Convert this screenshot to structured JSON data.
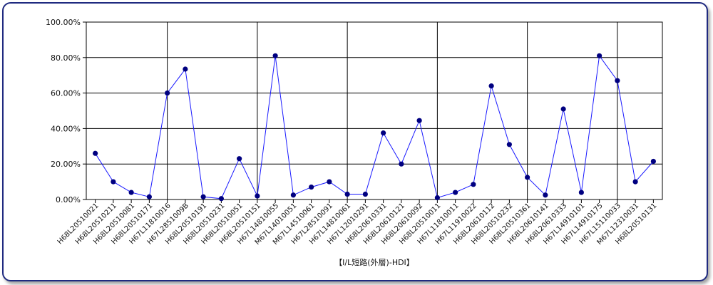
{
  "chart_data": {
    "type": "line",
    "title": "",
    "xlabel": "【I/L短路(外層)-HDI】",
    "ylabel": "",
    "ylim": [
      0,
      100
    ],
    "y_tick_labels": [
      "0.00%",
      "20.00%",
      "40.00%",
      "60.00%",
      "80.00%",
      "100.00%"
    ],
    "grid": true,
    "colors": {
      "line": "#1a1aff",
      "marker": "#000080",
      "frame": "#1f2a80"
    },
    "categories": [
      "H68L20510021",
      "H68L20510211",
      "H68L20510081",
      "H68L20510171",
      "H67L11810016",
      "H67L2851009B",
      "H68L20510191",
      "H68L20510231",
      "H68L20510051",
      "H68L20510151",
      "H67L14810055",
      "M67L14010051",
      "M67L14510061",
      "H67L28510091",
      "H67L14810061",
      "H67L12010291",
      "H68L20610331",
      "H68L20610121",
      "H68L20610092",
      "H68L20510011",
      "H67L11810011",
      "H67L11910022",
      "H68L20610112",
      "H68L20510232",
      "H68L20510361",
      "H68L20610141",
      "H68L20610333",
      "H67L14910101",
      "H67L14910175",
      "H67L15110033",
      "M67L12310031",
      "H68L20510131"
    ],
    "values": [
      26,
      10,
      4,
      1.5,
      60,
      73.5,
      1.5,
      0.5,
      23,
      2,
      81,
      2.5,
      7,
      10,
      3,
      3,
      37.5,
      20,
      44.5,
      1,
      4,
      8.5,
      64,
      31,
      12.5,
      2.5,
      51,
      4,
      81,
      67,
      10,
      21.5
    ]
  }
}
